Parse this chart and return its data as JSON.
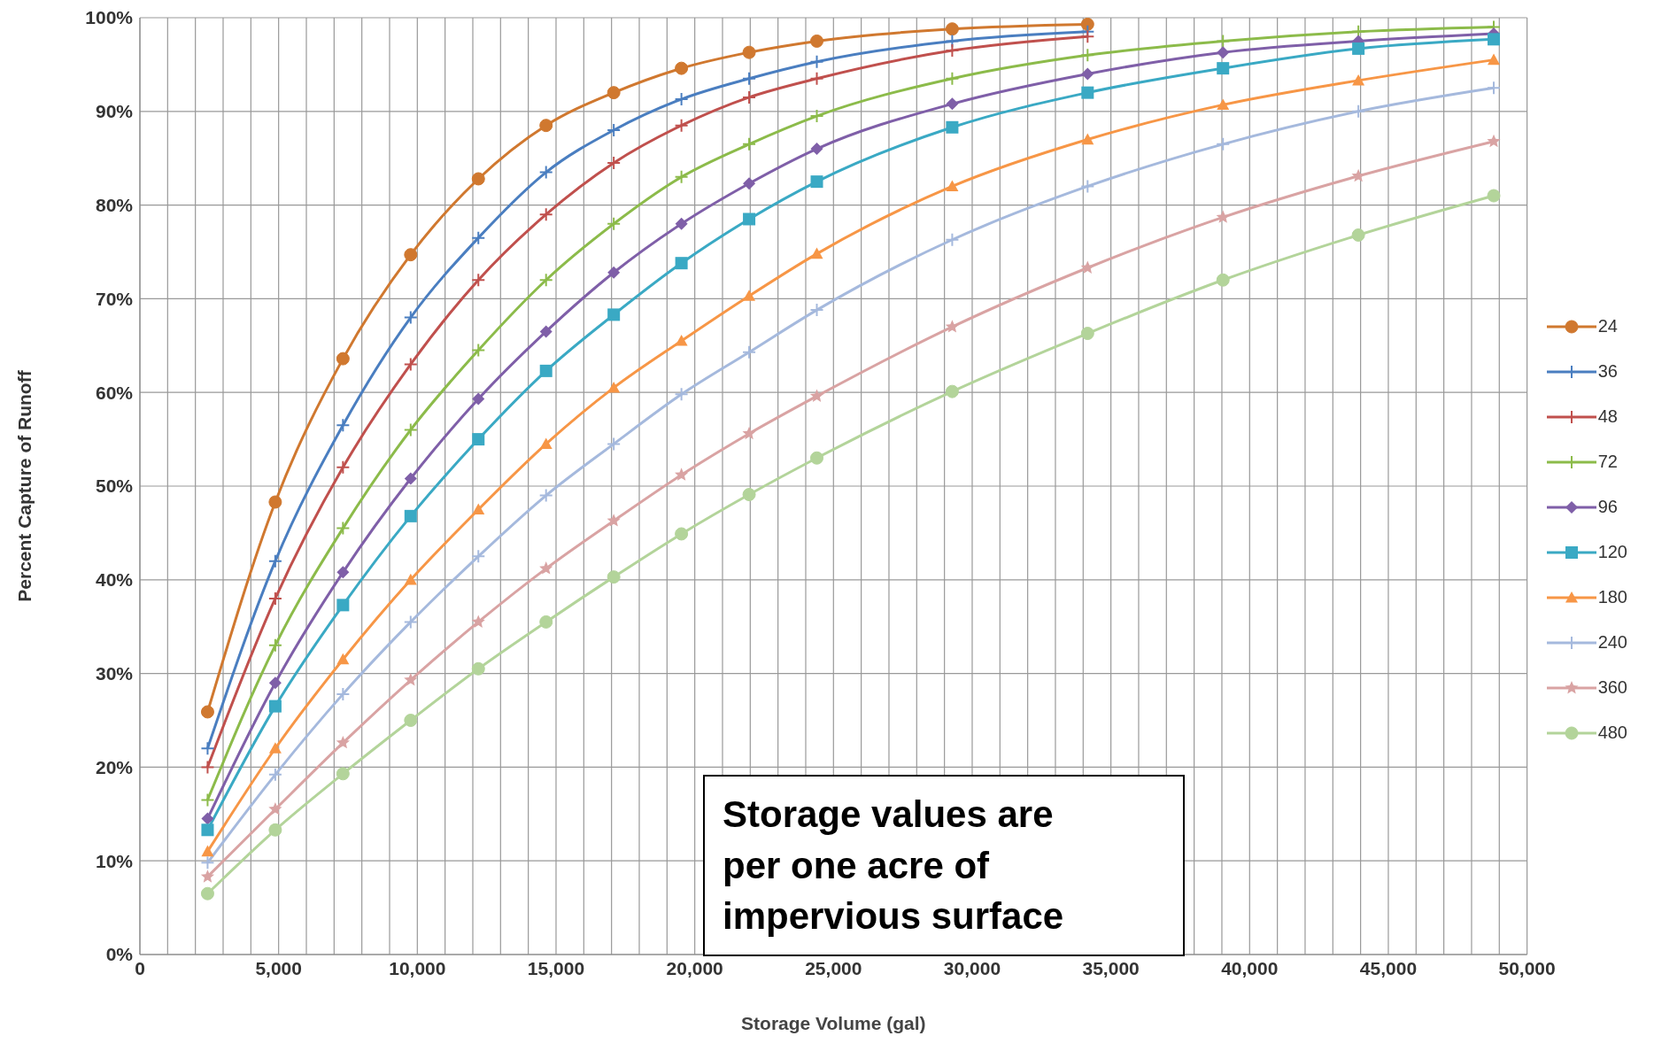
{
  "chart_data": {
    "type": "line",
    "xlabel": "Storage Volume (gal)",
    "ylabel": "Percent Capture of Runoff",
    "x": [
      2440,
      4880,
      7320,
      9760,
      12200,
      14640,
      17080,
      19520,
      21960,
      24400,
      29280,
      34160,
      39040,
      43920,
      48800
    ],
    "xlim": [
      0,
      50000
    ],
    "xticks": [
      {
        "value": 0,
        "label": "0"
      },
      {
        "value": 1000,
        "label": null
      },
      {
        "value": 2000,
        "label": null
      },
      {
        "value": 3000,
        "label": null
      },
      {
        "value": 4000,
        "label": null
      },
      {
        "value": 5000,
        "label": "5,000"
      },
      {
        "value": 6000,
        "label": null
      },
      {
        "value": 7000,
        "label": null
      },
      {
        "value": 8000,
        "label": null
      },
      {
        "value": 9000,
        "label": null
      },
      {
        "value": 10000,
        "label": "10,000"
      },
      {
        "value": 11000,
        "label": null
      },
      {
        "value": 12000,
        "label": null
      },
      {
        "value": 13000,
        "label": null
      },
      {
        "value": 14000,
        "label": null
      },
      {
        "value": 15000,
        "label": "15,000"
      },
      {
        "value": 16000,
        "label": null
      },
      {
        "value": 17000,
        "label": null
      },
      {
        "value": 18000,
        "label": null
      },
      {
        "value": 19000,
        "label": null
      },
      {
        "value": 20000,
        "label": "20,000"
      },
      {
        "value": 21000,
        "label": null
      },
      {
        "value": 22000,
        "label": null
      },
      {
        "value": 23000,
        "label": null
      },
      {
        "value": 24000,
        "label": null
      },
      {
        "value": 25000,
        "label": "25,000"
      },
      {
        "value": 26000,
        "label": null
      },
      {
        "value": 27000,
        "label": null
      },
      {
        "value": 28000,
        "label": null
      },
      {
        "value": 29000,
        "label": null
      },
      {
        "value": 30000,
        "label": "30,000"
      },
      {
        "value": 31000,
        "label": null
      },
      {
        "value": 32000,
        "label": null
      },
      {
        "value": 33000,
        "label": null
      },
      {
        "value": 34000,
        "label": null
      },
      {
        "value": 35000,
        "label": "35,000"
      },
      {
        "value": 36000,
        "label": null
      },
      {
        "value": 37000,
        "label": null
      },
      {
        "value": 38000,
        "label": null
      },
      {
        "value": 39000,
        "label": null
      },
      {
        "value": 40000,
        "label": "40,000"
      },
      {
        "value": 41000,
        "label": null
      },
      {
        "value": 42000,
        "label": null
      },
      {
        "value": 43000,
        "label": null
      },
      {
        "value": 44000,
        "label": null
      },
      {
        "value": 45000,
        "label": "45,000"
      },
      {
        "value": 46000,
        "label": null
      },
      {
        "value": 47000,
        "label": null
      },
      {
        "value": 48000,
        "label": null
      },
      {
        "value": 49000,
        "label": null
      },
      {
        "value": 50000,
        "label": "50,000"
      }
    ],
    "ylim": [
      0,
      100
    ],
    "yticks": [
      {
        "value": 0,
        "label": "0%"
      },
      {
        "value": 10,
        "label": "10%"
      },
      {
        "value": 20,
        "label": "20%"
      },
      {
        "value": 30,
        "label": "30%"
      },
      {
        "value": 40,
        "label": "40%"
      },
      {
        "value": 50,
        "label": "50%"
      },
      {
        "value": 60,
        "label": "60%"
      },
      {
        "value": 70,
        "label": "70%"
      },
      {
        "value": 80,
        "label": "80%"
      },
      {
        "value": 90,
        "label": "90%"
      },
      {
        "value": 100,
        "label": "100%"
      }
    ],
    "grid": true,
    "legend": "right",
    "annotations": [
      "Storage values are per one acre of impervious surface"
    ],
    "series": [
      {
        "name": "24",
        "color": "#d0782f",
        "marker": "circle",
        "values": [
          25.9,
          48.3,
          63.6,
          74.7,
          82.8,
          88.5,
          92.0,
          94.6,
          96.3,
          97.5,
          98.8,
          99.3,
          null,
          null,
          null
        ]
      },
      {
        "name": "36",
        "color": "#4a7ec0",
        "marker": "cross",
        "values": [
          22,
          42,
          56.5,
          68,
          76.5,
          83.5,
          88,
          91.3,
          93.5,
          95.3,
          97.5,
          98.5,
          null,
          null,
          null
        ]
      },
      {
        "name": "48",
        "color": "#c0504d",
        "marker": "cross",
        "values": [
          20,
          38,
          52,
          63,
          72,
          79,
          84.5,
          88.5,
          91.5,
          93.5,
          96.5,
          98,
          null,
          null,
          null
        ]
      },
      {
        "name": "72",
        "color": "#8cbb4a",
        "marker": "cross",
        "values": [
          16.5,
          33,
          45.5,
          56,
          64.5,
          72,
          78,
          83,
          86.5,
          89.5,
          93.5,
          96,
          97.5,
          98.5,
          99
        ]
      },
      {
        "name": "96",
        "color": "#7f5fa8",
        "marker": "diamond",
        "values": [
          14.5,
          29,
          40.8,
          50.8,
          59.3,
          66.5,
          72.8,
          78,
          82.3,
          86,
          90.8,
          94,
          96.3,
          97.5,
          98.3
        ]
      },
      {
        "name": "120",
        "color": "#3aa9c4",
        "marker": "square",
        "values": [
          13.3,
          26.5,
          37.3,
          46.8,
          55,
          62.3,
          68.3,
          73.8,
          78.5,
          82.5,
          88.3,
          92,
          94.6,
          96.7,
          97.7
        ]
      },
      {
        "name": "180",
        "color": "#f79646",
        "marker": "triangle",
        "values": [
          11,
          22,
          31.5,
          40,
          47.5,
          54.5,
          60.5,
          65.5,
          70.3,
          74.8,
          82,
          87,
          90.7,
          93.3,
          95.5
        ]
      },
      {
        "name": "240",
        "color": "#a5b9dd",
        "marker": "cross",
        "values": [
          9.8,
          19.2,
          27.8,
          35.5,
          42.5,
          49,
          54.5,
          59.8,
          64.3,
          68.8,
          76.3,
          82,
          86.5,
          90,
          92.5
        ]
      },
      {
        "name": "360",
        "color": "#d9a3a3",
        "marker": "star",
        "values": [
          8.3,
          15.5,
          22.6,
          29.3,
          35.5,
          41.2,
          46.3,
          51.2,
          55.6,
          59.6,
          67,
          73.3,
          78.7,
          83.1,
          86.8
        ]
      },
      {
        "name": "480",
        "color": "#b3d49a",
        "marker": "circle",
        "values": [
          6.5,
          13.3,
          19.3,
          25,
          30.5,
          35.5,
          40.3,
          44.9,
          49.1,
          53,
          60.1,
          66.3,
          72,
          76.8,
          81
        ]
      }
    ]
  }
}
